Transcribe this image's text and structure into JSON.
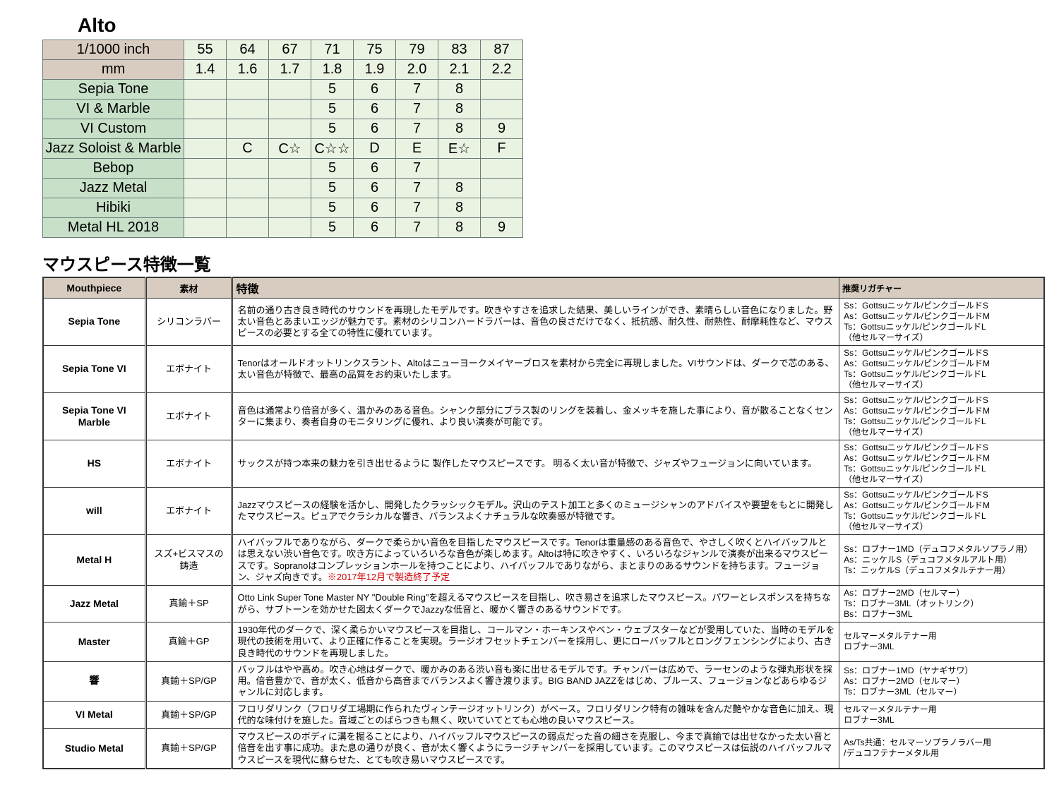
{
  "alto": {
    "title": "Alto",
    "header_rows": [
      {
        "label": "1/1000 inch",
        "cells": [
          "55",
          "64",
          "67",
          "71",
          "75",
          "79",
          "83",
          "87"
        ]
      },
      {
        "label": "mm",
        "cells": [
          "1.4",
          "1.6",
          "1.7",
          "1.8",
          "1.9",
          "2.0",
          "2.1",
          "2.2"
        ]
      }
    ],
    "rows": [
      {
        "label": "Sepia Tone",
        "cells": [
          "",
          "",
          "",
          "5",
          "6",
          "7",
          "8",
          ""
        ]
      },
      {
        "label": "VI & Marble",
        "cells": [
          "",
          "",
          "",
          "5",
          "6",
          "7",
          "8",
          ""
        ]
      },
      {
        "label": "VI Custom",
        "cells": [
          "",
          "",
          "",
          "5",
          "6",
          "7",
          "8",
          "9"
        ]
      },
      {
        "label": "Jazz Soloist & Marble",
        "cells": [
          "",
          "C",
          "C☆",
          "C☆☆",
          "D",
          "E",
          "E☆",
          "F"
        ]
      },
      {
        "label": "Bebop",
        "cells": [
          "",
          "",
          "",
          "5",
          "6",
          "7",
          "",
          ""
        ]
      },
      {
        "label": "Jazz Metal",
        "cells": [
          "",
          "",
          "",
          "5",
          "6",
          "7",
          "8",
          ""
        ]
      },
      {
        "label": "Hibiki",
        "cells": [
          "",
          "",
          "",
          "5",
          "6",
          "7",
          "8",
          ""
        ]
      },
      {
        "label": "Metal HL 2018",
        "cells": [
          "",
          "",
          "",
          "5",
          "6",
          "7",
          "8",
          "9"
        ]
      }
    ],
    "colors": {
      "header_bg": "#d8ccc0",
      "label_bg": "#c8e0c8",
      "cell_bg": "#eaf2e2",
      "border": "#6a7a7a"
    }
  },
  "features": {
    "title": "マウスピース特徴一覧",
    "columns": [
      "Mouthpiece",
      "素材",
      "特徴",
      "推奨リガチャー"
    ],
    "lig_std": "Ss：Gottsuニッケル/ピンクゴールドS\nAs：Gottsuニッケル/ピンクゴールドM\nTs：Gottsuニッケル/ピンクゴールドL\n（他セルマーサイズ）",
    "rows": [
      {
        "mp": "Sepia  Tone",
        "mat": "シリコンラバー",
        "desc": "名前の通り古き良き時代のサウンドを再現したモデルです。吹きやすさを追求した結果、美しいラインができ、素晴らしい音色になりました。野太い音色とあまいエッジが魅力です。素材のシリコンハードラバーは、音色の良さだけでなく、抵抗感、耐久性、耐熱性、耐摩耗性など、マウスピースの必要とする全ての特性に優れています。",
        "lig_key": "lig_std"
      },
      {
        "mp": "Sepia Tone VI",
        "mat": "エボナイト",
        "desc": "Tenorはオールドオットリンクスラント、Altoはニューヨークメイヤーブロスを素材から完全に再現しました。VIサウンドは、ダークで芯のある、太い音色が特徴で、最高の品質をお約束いたします。",
        "lig_key": "lig_std"
      },
      {
        "mp": "Sepia Tone VI Marble",
        "mat": "エボナイト",
        "desc": "音色は通常より倍音が多く、温かみのある音色。シャンク部分にブラス製のリングを装着し、金メッキを施した事により、音が散ることなくセンターに集まり、奏者自身のモニタリングに優れ、より良い演奏が可能です。",
        "lig_key": "lig_std"
      },
      {
        "mp": "HS",
        "mat": "エボナイト",
        "desc": "サックスが持つ本来の魅力を引き出せるように 製作したマウスピースです。 明るく太い音が特徴で、ジャズやフュージョンに向いています。",
        "lig_key": "lig_std"
      },
      {
        "mp": "will",
        "mat": "エボナイト",
        "desc": "Jazzマウスピースの経験を活かし、開発したクラッシックモデル。沢山のテスト加工と多くのミュージシャンのアドバイスや要望をもとに開発したマウスピース。ピュアでクラシカルな響き、バランスよくナチュラルな吹奏感が特徴です。",
        "lig_key": "lig_std"
      },
      {
        "mp": "Metal  H",
        "mat": "スズ+ビスマスの鋳造",
        "desc": "ハイバッフルでありながら、ダークで柔らかい音色を目指したマウスピースです。Tenorは重量感のある音色で、やさしく吹くとハイバッフルとは思えない渋い音色です。吹き方によっていろいろな音色が楽しめます。Altoは特に吹きやすく、いろいろなジャンルで演奏が出来るマウスピースです。Sopranoはコンプレッションホールを持つことにより、ハイバッフルでありながら、まとまりのあるサウンドを持ちます。フュージョン、ジャズ向きです。",
        "desc_red": "※2017年12月で製造終了予定",
        "lig": "Ss：ロブナー1MD（デュコフメタルソプラノ用）\nAs：ニッケルS（デュコフメタルアルト用）\nTs：ニッケルS（デュコフメタルテナー用）"
      },
      {
        "mp": "Jazz Metal",
        "mat": "真鍮＋SP",
        "desc": "Otto Link Super Tone Master NY \"Double Ring\"を超えるマウスピースを目指し、吹き易さを追求したマウスピース。パワーとレスポンスを持ちながら、サブトーンを効かせた図太くダークでJazzyな低音と、暖かく響きのあるサウンドです。",
        "lig": "As：ロブナー2MD（セルマー）\nTs：ロブナー3ML（オットリンク）\nBs：ロブナー3ML"
      },
      {
        "mp": "Master",
        "mat": "真鍮＋GP",
        "desc": "1930年代のダークで、深く柔らかいマウスピースを目指し、コールマン・ホーキンスやベン・ウェブスターなどが愛用していた、当時のモデルを現代の技術を用いて、より正確に作ることを実現。ラージオフセットチェンバーを採用し、更にローバッフルとロングフェンシングにより、古き良き時代のサウンドを再現しました。",
        "lig": "セルマーメタルテナー用\nロブナー3ML"
      },
      {
        "mp": "響",
        "mat": "真鍮＋SP/GP",
        "desc": "バッフルはやや高め。吹き心地はダークで、暖かみのある渋い音も楽に出せるモデルです。チャンバーは広めで、ラーセンのような弾丸形状を採用。倍音豊かで、音が太く、低音から高音までバランスよく響き渡ります。BIG BAND JAZZをはじめ、ブルース、フュージョンなどあらゆるジャンルに対応します。",
        "lig": "Ss：ロブナー1MD（ヤナギサワ）\nAs：ロブナー2MD（セルマー）\nTs：ロブナー3ML（セルマー）"
      },
      {
        "mp": "VI Metal",
        "mat": "真鍮＋SP/GP",
        "desc": "フロリダリンク（フロリダ工場期に作られたヴィンテージオットリンク）がベース。フロリダリンク特有の雑味を含んだ艶やかな音色に加え、現代的な味付けを施した。音域ごとのばらつきも無く、吹いていてとても心地の良いマウスピース。",
        "lig": "セルマーメタルテナー用\nロブナー3ML"
      },
      {
        "mp": "Studio Metal",
        "mat": "真鍮＋SP/GP",
        "desc": "マウスピースのボディに溝を掘ることにより、ハイバッフルマウスピースの弱点だった音の細さを克服し、今まで真鍮では出せなかった太い音と倍音を出す事に成功。また息の通りが良く、音が太く響くようにラージチャンバーを採用しています。このマウスピースは伝説のハイバッフルマウスピースを現代に蘇らせた、とても吹き易いマウスピースです。",
        "lig": "As/Ts共通：セルマーソプラノラバー用\n/デュコフテナーメタル用"
      }
    ],
    "colors": {
      "header_bg": "#d8ccc0",
      "border": "#333333",
      "red": "#d00000"
    }
  }
}
